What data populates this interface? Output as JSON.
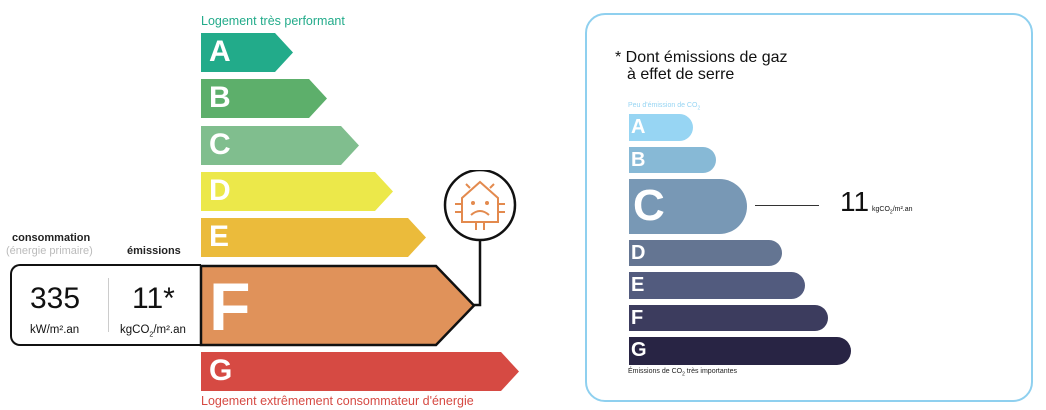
{
  "energy": {
    "top_caption": "Logement très performant",
    "bottom_caption": "Logement extrêmement consommateur d'énergie",
    "classes": [
      {
        "letter": "A",
        "color": "#22ab8a"
      },
      {
        "letter": "B",
        "color": "#5daf6b"
      },
      {
        "letter": "C",
        "color": "#80be8e"
      },
      {
        "letter": "D",
        "color": "#ece84a"
      },
      {
        "letter": "E",
        "color": "#ebbb3b"
      },
      {
        "letter": "F",
        "color": "#e0925a"
      },
      {
        "letter": "G",
        "color": "#d64a43"
      }
    ],
    "current_class": "F",
    "consumption_label": "consommation",
    "consumption_sub": "(énergie primaire)",
    "emissions_label": "émissions",
    "consumption_value": "335",
    "consumption_unit": "kW/m².an",
    "emissions_value": "11*",
    "emissions_unit_a": "kgCO",
    "emissions_unit_sub": "2",
    "emissions_unit_b": "/m².an",
    "icon": "sad-house-icon"
  },
  "ges": {
    "title_line1": "* Dont émissions de gaz",
    "title_line2": "à effet de serre",
    "top_caption_a": "Peu d'émission de CO",
    "top_caption_sub": "2",
    "bottom_caption_a": "Émissions de CO",
    "bottom_caption_sub": "2",
    "bottom_caption_b": " très importantes",
    "classes": [
      {
        "letter": "A",
        "color": "#97d5f3"
      },
      {
        "letter": "B",
        "color": "#87b9d6"
      },
      {
        "letter": "C",
        "color": "#7898b5"
      },
      {
        "letter": "D",
        "color": "#647592"
      },
      {
        "letter": "E",
        "color": "#525b7e"
      },
      {
        "letter": "F",
        "color": "#3c3c5e"
      },
      {
        "letter": "G",
        "color": "#282444"
      }
    ],
    "current_class": "C",
    "value": "11",
    "unit_a": "kgCO",
    "unit_sub": "2",
    "unit_b": "/m².an",
    "border_color": "#8fd0ef"
  }
}
